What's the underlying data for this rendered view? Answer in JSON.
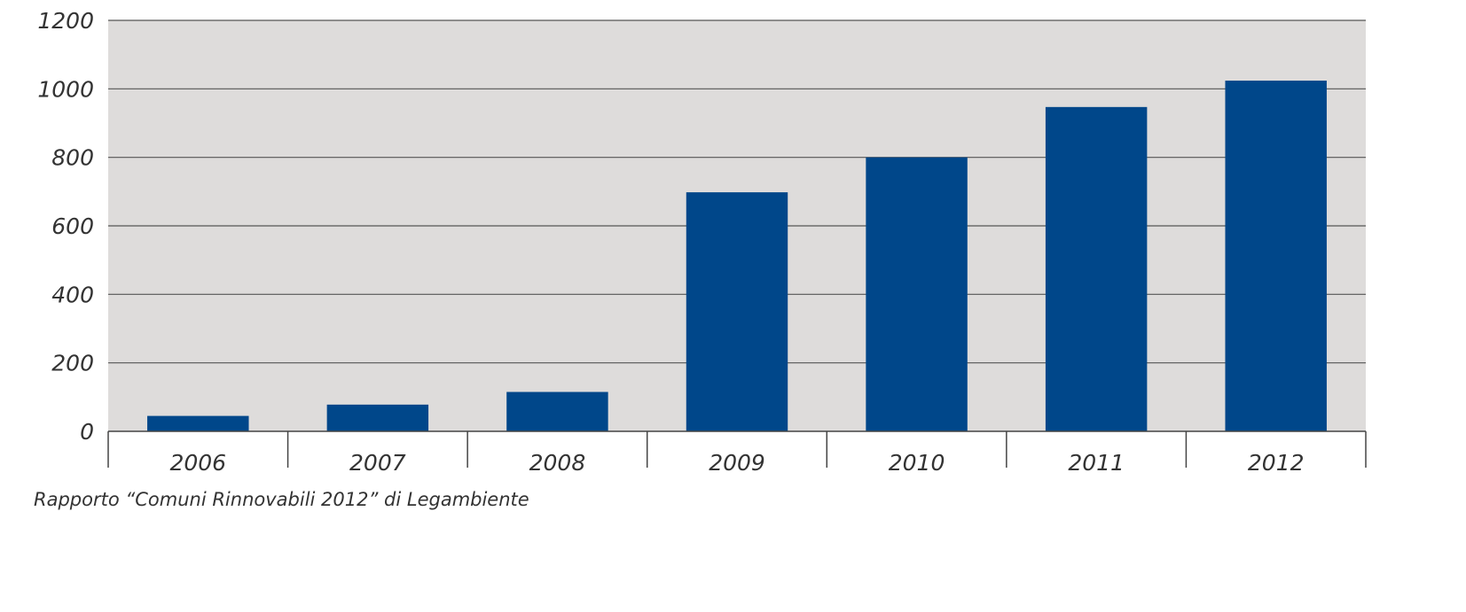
{
  "colors": {
    "plot_background": "#dedcdb",
    "bar": "#00478a",
    "gridline": "#555555",
    "axis": "#444444",
    "text": "#333333"
  },
  "chart_data": {
    "type": "bar",
    "title": "",
    "xlabel": "",
    "ylabel": "",
    "categories": [
      "2006",
      "2007",
      "2008",
      "2009",
      "2010",
      "2011",
      "2012"
    ],
    "values": [
      45,
      78,
      115,
      698,
      800,
      947,
      1024
    ],
    "ylim": [
      0,
      1200
    ],
    "yticks": [
      0,
      200,
      400,
      600,
      800,
      1000,
      1200
    ],
    "grid": true,
    "legend": "none"
  },
  "source_note": "Rapporto “Comuni Rinnovabili 2012” di Legambiente"
}
